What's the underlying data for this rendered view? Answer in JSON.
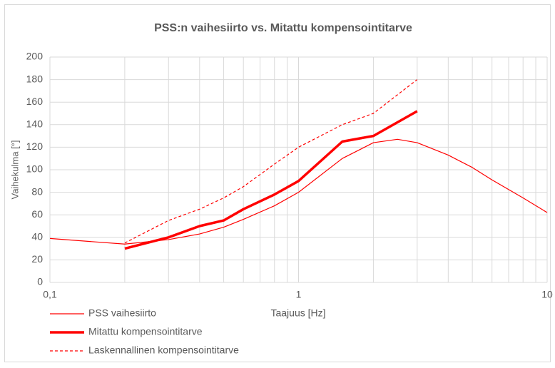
{
  "chart_data": {
    "type": "line",
    "title": "PSS:n vaihesiirto vs. Mitattu kompensointitarve",
    "xlabel": "Taajuus  [Hz]",
    "ylabel": "Vaihekulma [°]",
    "xscale": "log",
    "grid": true,
    "legend": "bottom-left",
    "xlim": [
      0.1,
      10
    ],
    "xticks": [
      {
        "value": 0.1,
        "label": "0,1"
      },
      1,
      10
    ],
    "ylim": [
      0,
      200
    ],
    "yticks": [
      0,
      20,
      40,
      60,
      80,
      100,
      120,
      140,
      160,
      180,
      200
    ],
    "series": [
      {
        "name": "PSS vaihesiirto",
        "color": "#ff0000",
        "style": "thin",
        "x": [
          0.1,
          0.2,
          0.3,
          0.4,
          0.5,
          0.6,
          0.8,
          1,
          1.5,
          2,
          2.5,
          3,
          4,
          5,
          6,
          8,
          10
        ],
        "values": [
          39,
          34,
          38,
          43,
          49,
          56,
          68,
          80,
          110,
          124,
          127,
          124,
          113,
          102,
          91,
          75,
          62
        ]
      },
      {
        "name": "Mitattu kompensointitarve",
        "color": "#ff0000",
        "style": "thick",
        "x": [
          0.2,
          0.3,
          0.4,
          0.5,
          0.6,
          0.8,
          1,
          1.5,
          2,
          3
        ],
        "values": [
          30,
          40,
          50,
          55,
          65,
          78,
          90,
          125,
          130,
          152
        ]
      },
      {
        "name": "Laskennallinen kompensointitarve",
        "color": "#ff0000",
        "style": "dashed",
        "x": [
          0.2,
          0.3,
          0.4,
          0.5,
          0.6,
          0.8,
          1,
          1.5,
          2,
          3
        ],
        "values": [
          35,
          55,
          65,
          75,
          85,
          105,
          120,
          140,
          150,
          180
        ]
      }
    ]
  }
}
